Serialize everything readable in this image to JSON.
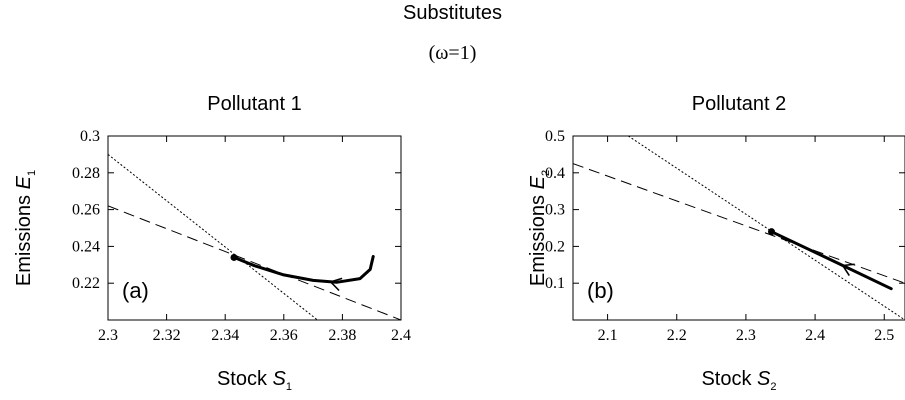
{
  "figure": {
    "title": "Substitutes",
    "subtitle": "(ω=1)"
  },
  "chart_data": [
    {
      "type": "line",
      "title": "Pollutant 1",
      "panel_label": "(a)",
      "xlabel": "Stock",
      "xlabel_symbol": "S",
      "xlabel_sub": "1",
      "ylabel": "Emissions",
      "ylabel_symbol": "E",
      "ylabel_sub": "1",
      "xlim": [
        2.3,
        2.4
      ],
      "ylim": [
        0.2,
        0.3
      ],
      "x_ticks": [
        "2.3",
        "2.32",
        "2.34",
        "2.36",
        "2.38",
        "2.4"
      ],
      "y_ticks": [
        "0.22",
        "0.24",
        "0.26",
        "0.28",
        "0.3"
      ],
      "grid": false,
      "series": [
        {
          "style": "dotted",
          "points": [
            [
              2.3,
              0.29
            ],
            [
              2.3715,
              0.2
            ]
          ]
        },
        {
          "style": "dashed",
          "points": [
            [
              2.3,
              0.262
            ],
            [
              2.4,
              0.2
            ]
          ]
        },
        {
          "style": "solid-thick",
          "points": [
            [
              2.343,
              0.234
            ],
            [
              2.35,
              0.2295
            ],
            [
              2.36,
              0.2245
            ],
            [
              2.37,
              0.2215
            ],
            [
              2.378,
              0.2205
            ],
            [
              2.386,
              0.2225
            ],
            [
              2.3895,
              0.2275
            ],
            [
              2.3905,
              0.2345
            ]
          ]
        }
      ],
      "steady_state": [
        2.343,
        0.234
      ],
      "arrow_at": [
        2.376,
        0.2207
      ]
    },
    {
      "type": "line",
      "title": "Pollutant 2",
      "panel_label": "(b)",
      "xlabel": "Stock",
      "xlabel_symbol": "S",
      "xlabel_sub": "2",
      "ylabel": "Emissions",
      "ylabel_symbol": "E",
      "ylabel_sub": "2",
      "xlim": [
        2.05,
        2.53
      ],
      "ylim": [
        0.0,
        0.5
      ],
      "x_ticks": [
        "2.1",
        "2.2",
        "2.3",
        "2.4",
        "2.5"
      ],
      "y_ticks": [
        "0.1",
        "0.2",
        "0.3",
        "0.4",
        "0.5"
      ],
      "grid": false,
      "series": [
        {
          "style": "dotted",
          "points": [
            [
              2.13,
              0.5
            ],
            [
              2.53,
              0.0
            ]
          ]
        },
        {
          "style": "dashed",
          "points": [
            [
              2.05,
              0.425
            ],
            [
              2.53,
              0.1
            ]
          ]
        },
        {
          "style": "solid-thick",
          "points": [
            [
              2.337,
              0.24
            ],
            [
              2.42,
              0.166
            ],
            [
              2.51,
              0.085
            ]
          ]
        }
      ],
      "steady_state": [
        2.337,
        0.24
      ],
      "arrow_at": [
        2.44,
        0.148
      ]
    }
  ]
}
